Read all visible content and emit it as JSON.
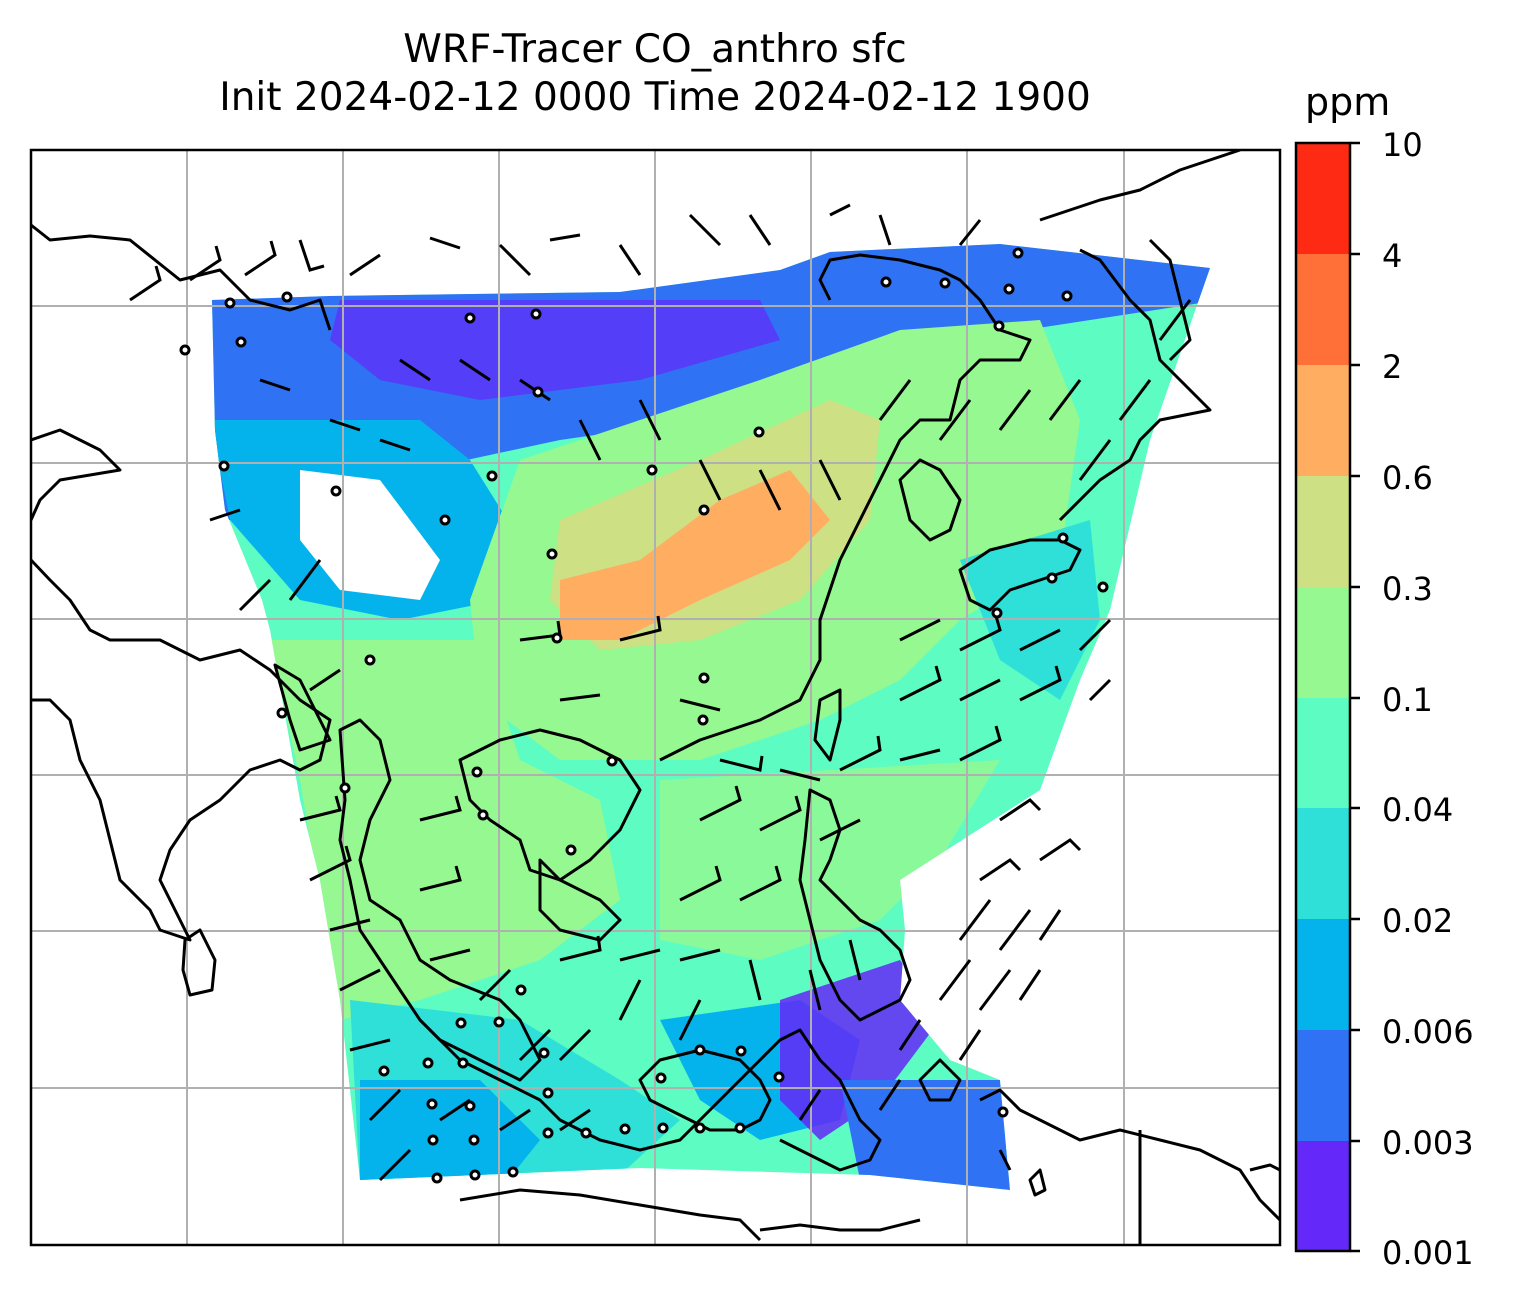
{
  "title": {
    "line1": "WRF-Tracer CO_anthro sfc",
    "line2": "Init 2024-02-12 0000 Time 2024-02-12 1900"
  },
  "colorbar": {
    "unit": "ppm",
    "ticks": [
      "10",
      "4",
      "2",
      "0.6",
      "0.3",
      "0.1",
      "0.04",
      "0.02",
      "0.006",
      "0.003",
      "0.001"
    ],
    "levels": [
      "#ff2a14",
      "#ff7038",
      "#ffad60",
      "#cde084",
      "#96f890",
      "#5cfcc2",
      "#2ee0d8",
      "#04b2ec",
      "#3072f4",
      "#6428f8"
    ]
  },
  "map": {
    "projection": "plate-carree",
    "field": "surface CO_anthro concentration with wind barbs",
    "gridlines": true,
    "coastlines": true
  },
  "colors": {
    "coast": "#000000",
    "grid": "#b0b0b0"
  }
}
